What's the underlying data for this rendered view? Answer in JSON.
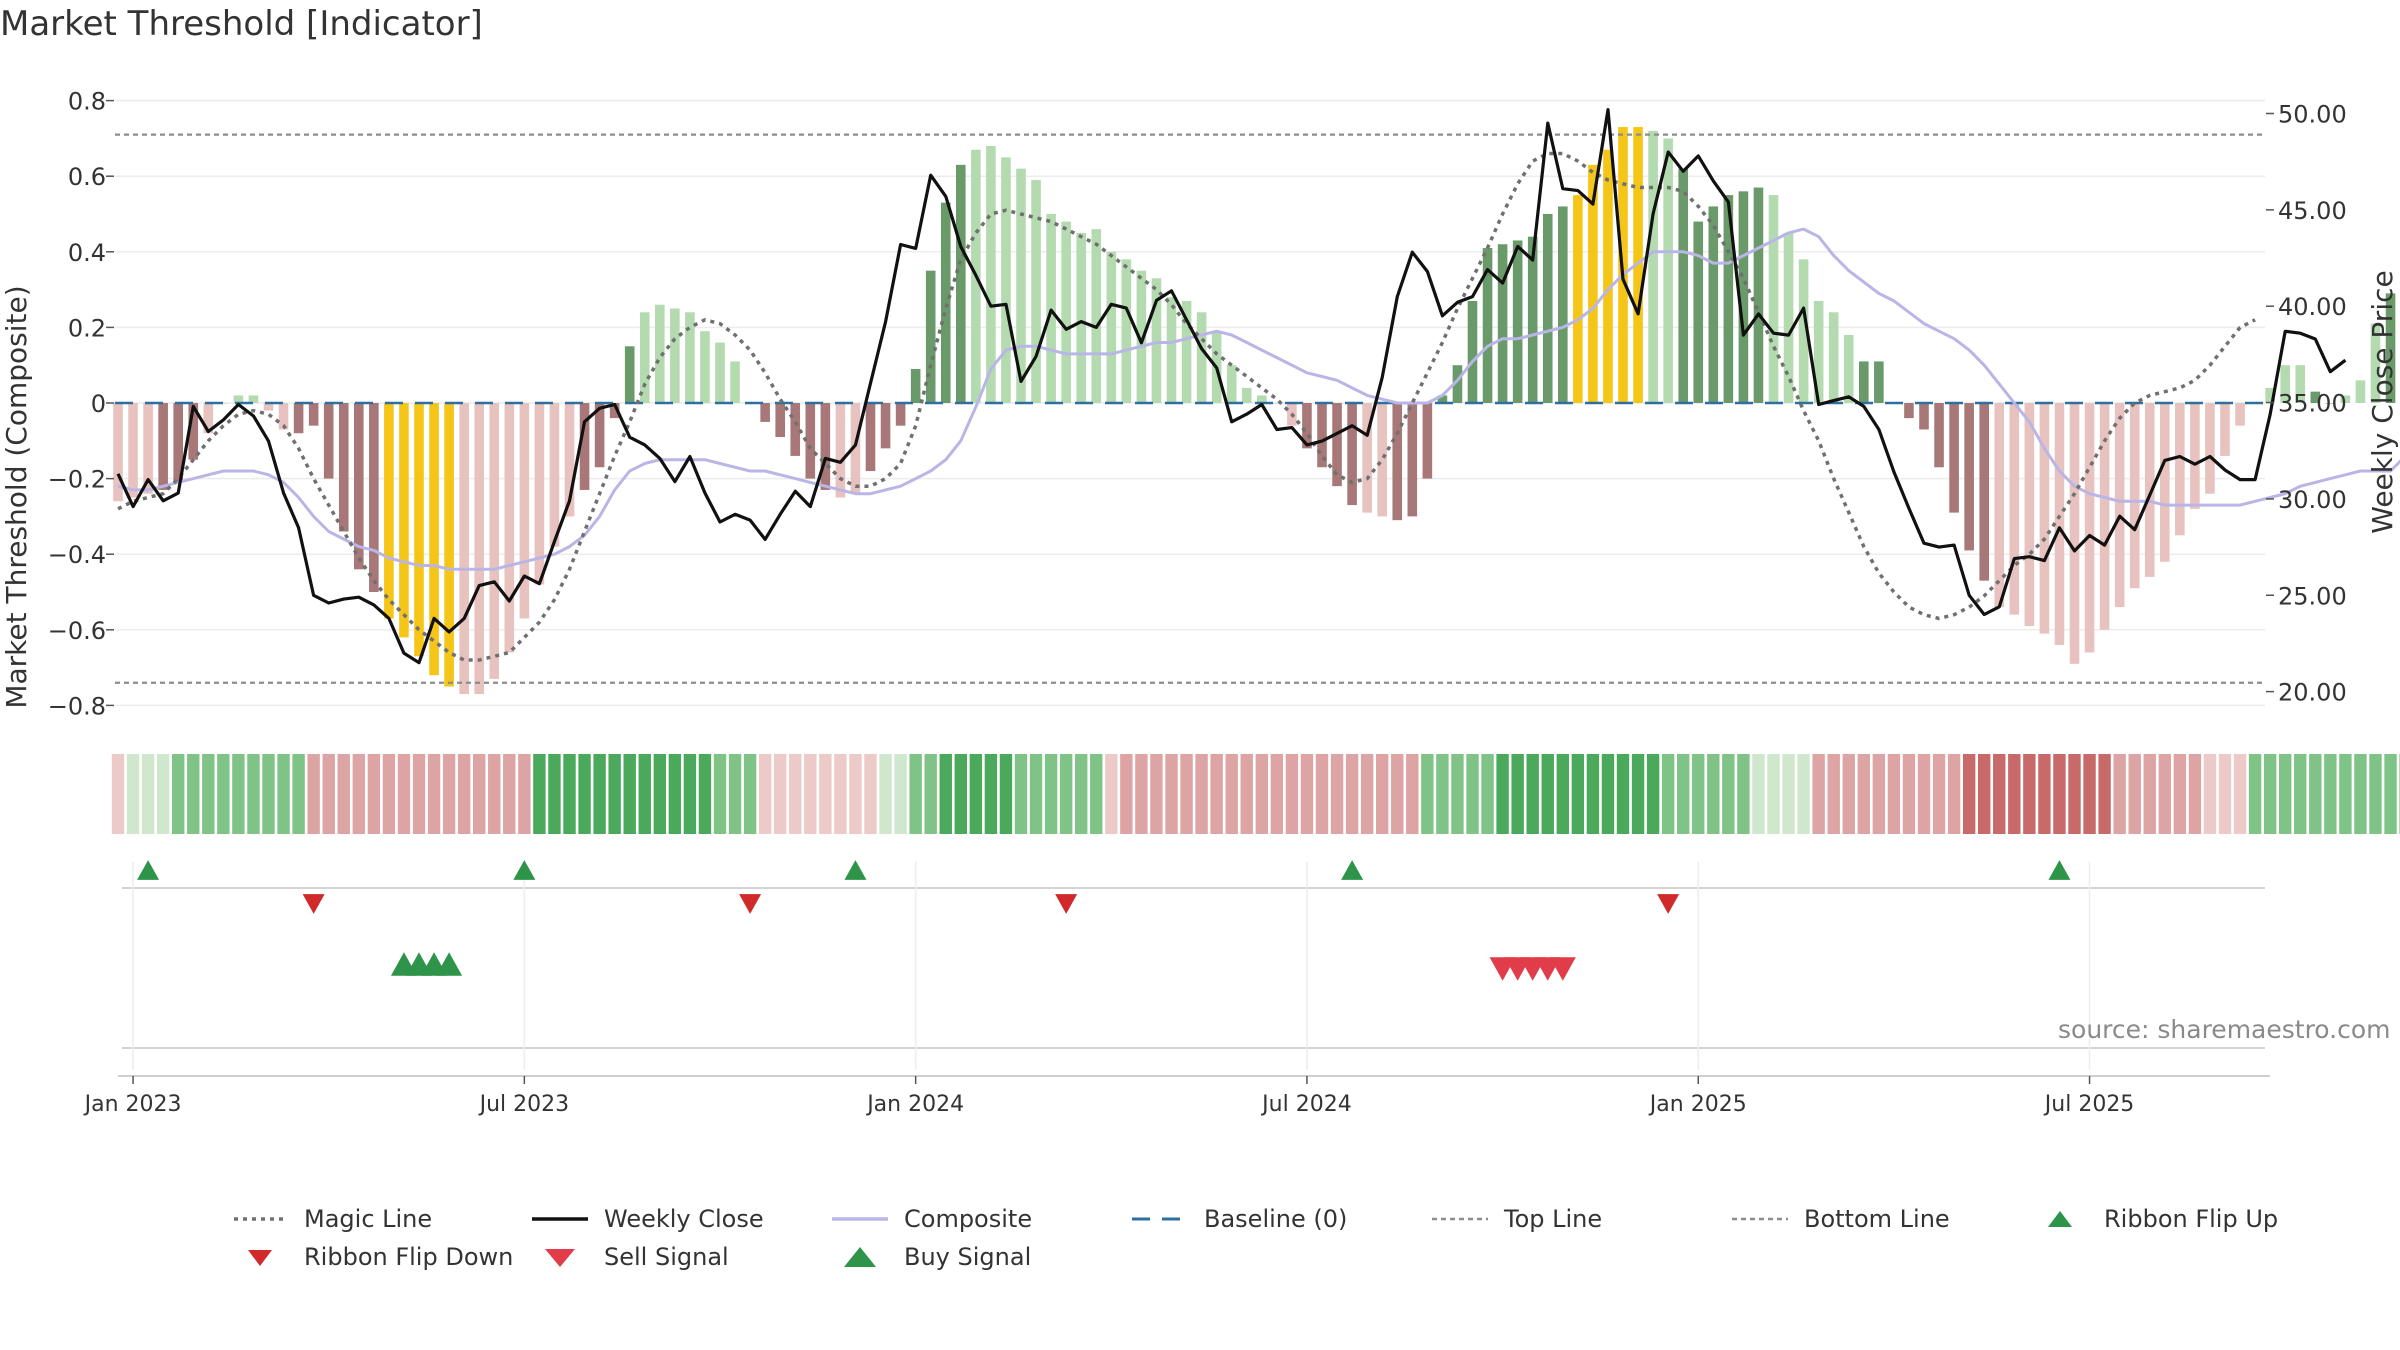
{
  "title": "Market Threshold [Indicator]",
  "source": "source: sharemaestro.com",
  "chart_data": {
    "type": "bar",
    "title": "Market Threshold [Indicator]",
    "ylabel_left": "Market Threshold (Composite)",
    "ylabel_right": "Weekly Close Price",
    "ylim_left": [
      -0.85,
      0.85
    ],
    "ylim_right": [
      19.5,
      51.5
    ],
    "yticks_left": [
      "0.8",
      "0.6",
      "0.4",
      "0.2",
      "0",
      "−0.2",
      "−0.4",
      "−0.6",
      "−0.8"
    ],
    "yticks_left_values": [
      0.8,
      0.6,
      0.4,
      0.2,
      0,
      -0.2,
      -0.4,
      -0.6,
      -0.8
    ],
    "yticks_right": [
      "50.00",
      "45.00",
      "40.00",
      "35.00",
      "30.00",
      "25.00",
      "20.00"
    ],
    "yticks_right_values": [
      50,
      45,
      40,
      35,
      30,
      25,
      20
    ],
    "xticks": [
      "Jan 2023",
      "Jul 2023",
      "Jan 2024",
      "Jul 2024",
      "Jan 2025",
      "Jul 2025"
    ],
    "xticks_week": [
      1,
      27,
      53,
      79,
      105,
      131
    ],
    "top_line": 0.71,
    "bottom_line": -0.74,
    "baseline": 0,
    "grid": true,
    "legend_position": "bottom",
    "colors": {
      "strong_pos": "#6a9a6a",
      "weak_pos": "#b4dbb0",
      "strong_neg": "#a87878",
      "weak_neg": "#e8c2bf",
      "extreme": "#f5c518",
      "weekly_close": "#111111",
      "composite": "#b9b5e6",
      "magic_line": "#707070",
      "baseline": "#2f6f9f",
      "threshold_lines": "#8c8c8c",
      "flip_up": "#2e9449",
      "flip_down": "#d12a2a",
      "sell_signal": "#e03c4a",
      "buy_signal": "#2e9449"
    },
    "bars": [
      -0.26,
      -0.25,
      -0.24,
      -0.23,
      -0.21,
      -0.15,
      -0.08,
      0.0,
      0.02,
      0.02,
      -0.02,
      -0.07,
      -0.08,
      -0.06,
      -0.2,
      -0.34,
      -0.44,
      -0.5,
      -0.57,
      -0.62,
      -0.67,
      -0.72,
      -0.75,
      -0.77,
      -0.77,
      -0.73,
      -0.66,
      -0.57,
      -0.48,
      -0.38,
      -0.3,
      -0.23,
      -0.17,
      -0.04,
      0.15,
      0.24,
      0.26,
      0.25,
      0.24,
      0.19,
      0.16,
      0.11,
      0.0,
      -0.05,
      -0.09,
      -0.14,
      -0.2,
      -0.23,
      -0.25,
      -0.24,
      -0.18,
      -0.12,
      -0.06,
      0.09,
      0.35,
      0.53,
      0.63,
      0.67,
      0.68,
      0.65,
      0.62,
      0.59,
      0.5,
      0.48,
      0.45,
      0.46,
      0.4,
      0.38,
      0.35,
      0.33,
      0.28,
      0.27,
      0.24,
      0.19,
      0.1,
      0.04,
      0.02,
      0.0,
      -0.06,
      -0.12,
      -0.17,
      -0.22,
      -0.27,
      -0.29,
      -0.3,
      -0.31,
      -0.3,
      -0.2,
      0.02,
      0.1,
      0.27,
      0.41,
      0.42,
      0.43,
      0.44,
      0.5,
      0.52,
      0.55,
      0.63,
      0.67,
      0.73,
      0.73,
      0.72,
      0.7,
      0.62,
      0.48,
      0.52,
      0.55,
      0.56,
      0.57,
      0.55,
      0.45,
      0.38,
      0.27,
      0.24,
      0.18,
      0.11,
      0.11,
      0.0,
      -0.04,
      -0.07,
      -0.17,
      -0.29,
      -0.39,
      -0.47,
      -0.54,
      -0.56,
      -0.59,
      -0.61,
      -0.64,
      -0.69,
      -0.66,
      -0.6,
      -0.54,
      -0.49,
      -0.46,
      -0.42,
      -0.35,
      -0.28,
      -0.24,
      -0.14,
      -0.06,
      0.0,
      0.04,
      0.1,
      0.1,
      0.03,
      0.0,
      0.02,
      0.06,
      0.21,
      0.29,
      0.35,
      0.33,
      0.37
    ],
    "bar_classes": "wwwsssww wwwwssssss eeeeewwwwwwwwssss wwwwwwwssssssw wsss ssssww wwwwwwwwwwwwwww wwwwwssssww ssssssssss sseeeeewwsssssswwwwww sssssssss wwwwwwwwww wwwwwwwwwww sswwwsww",
    "weekly_close": [
      31.3,
      29.6,
      31.0,
      29.9,
      30.3,
      34.8,
      33.5,
      34.1,
      34.9,
      34.3,
      33.0,
      30.3,
      28.5,
      25.0,
      24.6,
      24.8,
      24.9,
      24.5,
      23.8,
      22.0,
      21.5,
      23.8,
      23.1,
      23.8,
      25.5,
      25.7,
      24.7,
      26.0,
      25.6,
      27.8,
      29.9,
      34.0,
      34.7,
      34.9,
      33.2,
      32.8,
      32.1,
      30.9,
      32.2,
      30.3,
      28.8,
      29.2,
      28.9,
      27.9,
      29.2,
      30.4,
      29.6,
      32.1,
      31.9,
      32.8,
      36.0,
      39.2,
      43.2,
      43.0,
      46.8,
      45.7,
      43.1,
      41.6,
      40.0,
      40.1,
      36.1,
      37.4,
      39.8,
      38.8,
      39.2,
      38.9,
      40.1,
      39.9,
      38.1,
      40.3,
      40.8,
      39.3,
      37.8,
      36.8,
      34.0,
      34.4,
      34.9,
      33.6,
      33.7,
      32.8,
      33.0,
      33.4,
      33.8,
      33.3,
      36.3,
      40.5,
      42.8,
      41.8,
      39.5,
      40.2,
      40.5,
      41.9,
      41.2,
      43.1,
      42.4,
      49.5,
      46.1,
      46.0,
      45.3,
      50.2,
      41.4,
      39.6,
      44.8,
      48.0,
      47.0,
      47.8,
      46.5,
      45.4,
      38.5,
      39.6,
      38.6,
      38.5,
      39.9,
      34.9,
      35.1,
      35.3,
      34.8,
      33.6,
      31.4,
      29.5,
      27.7,
      27.5,
      27.6,
      25.0,
      24.0,
      24.4,
      26.9,
      27.0,
      26.8,
      28.5,
      27.3,
      28.1,
      27.6,
      29.1,
      28.4,
      30.2,
      32.0,
      32.2,
      31.8,
      32.2,
      31.5,
      31.0,
      31.0,
      34.4,
      38.7,
      38.6,
      38.3,
      36.6,
      37.2
    ],
    "composite": [
      -0.22,
      -0.23,
      -0.23,
      -0.22,
      -0.21,
      -0.2,
      -0.19,
      -0.18,
      -0.18,
      -0.18,
      -0.19,
      -0.21,
      -0.25,
      -0.3,
      -0.34,
      -0.36,
      -0.38,
      -0.39,
      -0.41,
      -0.42,
      -0.43,
      -0.43,
      -0.44,
      -0.44,
      -0.44,
      -0.44,
      -0.43,
      -0.42,
      -0.41,
      -0.4,
      -0.38,
      -0.35,
      -0.3,
      -0.23,
      -0.18,
      -0.16,
      -0.15,
      -0.15,
      -0.15,
      -0.15,
      -0.16,
      -0.17,
      -0.18,
      -0.18,
      -0.19,
      -0.2,
      -0.21,
      -0.22,
      -0.23,
      -0.24,
      -0.24,
      -0.23,
      -0.22,
      -0.2,
      -0.18,
      -0.15,
      -0.1,
      -0.01,
      0.09,
      0.14,
      0.15,
      0.15,
      0.14,
      0.13,
      0.13,
      0.13,
      0.13,
      0.14,
      0.15,
      0.16,
      0.16,
      0.17,
      0.18,
      0.19,
      0.18,
      0.16,
      0.14,
      0.12,
      0.1,
      0.08,
      0.07,
      0.06,
      0.04,
      0.02,
      0.01,
      0.0,
      0.0,
      0.0,
      0.02,
      0.06,
      0.11,
      0.15,
      0.17,
      0.17,
      0.18,
      0.19,
      0.2,
      0.22,
      0.25,
      0.3,
      0.34,
      0.37,
      0.4,
      0.4,
      0.4,
      0.39,
      0.37,
      0.37,
      0.39,
      0.41,
      0.43,
      0.45,
      0.46,
      0.44,
      0.39,
      0.35,
      0.32,
      0.29,
      0.27,
      0.24,
      0.21,
      0.19,
      0.17,
      0.14,
      0.1,
      0.05,
      0.0,
      -0.05,
      -0.12,
      -0.18,
      -0.22,
      -0.24,
      -0.25,
      -0.26,
      -0.26,
      -0.26,
      -0.27,
      -0.27,
      -0.27,
      -0.27,
      -0.27,
      -0.27,
      -0.26,
      -0.25,
      -0.24,
      -0.22,
      -0.21,
      -0.2,
      -0.19,
      -0.18,
      -0.18,
      -0.18,
      -0.14,
      -0.1,
      -0.06,
      -0.03,
      -0.02
    ],
    "magic_line": [
      -0.28,
      -0.26,
      -0.25,
      -0.24,
      -0.2,
      -0.15,
      -0.1,
      -0.06,
      -0.03,
      -0.02,
      -0.03,
      -0.06,
      -0.12,
      -0.2,
      -0.27,
      -0.34,
      -0.41,
      -0.47,
      -0.52,
      -0.56,
      -0.6,
      -0.63,
      -0.66,
      -0.68,
      -0.68,
      -0.67,
      -0.66,
      -0.62,
      -0.58,
      -0.52,
      -0.44,
      -0.34,
      -0.24,
      -0.14,
      -0.05,
      0.05,
      0.12,
      0.17,
      0.2,
      0.22,
      0.21,
      0.18,
      0.14,
      0.08,
      0.01,
      -0.05,
      -0.12,
      -0.16,
      -0.2,
      -0.22,
      -0.22,
      -0.2,
      -0.16,
      -0.06,
      0.1,
      0.25,
      0.38,
      0.45,
      0.5,
      0.51,
      0.5,
      0.49,
      0.48,
      0.46,
      0.44,
      0.42,
      0.39,
      0.36,
      0.33,
      0.3,
      0.26,
      0.21,
      0.17,
      0.13,
      0.1,
      0.07,
      0.04,
      0.01,
      -0.03,
      -0.08,
      -0.14,
      -0.19,
      -0.21,
      -0.2,
      -0.15,
      -0.08,
      0.0,
      0.08,
      0.16,
      0.25,
      0.33,
      0.41,
      0.5,
      0.58,
      0.64,
      0.66,
      0.66,
      0.64,
      0.61,
      0.59,
      0.58,
      0.57,
      0.57,
      0.57,
      0.56,
      0.52,
      0.47,
      0.4,
      0.33,
      0.24,
      0.15,
      0.07,
      -0.02,
      -0.1,
      -0.2,
      -0.29,
      -0.38,
      -0.45,
      -0.5,
      -0.54,
      -0.56,
      -0.57,
      -0.56,
      -0.54,
      -0.51,
      -0.47,
      -0.43,
      -0.4,
      -0.36,
      -0.3,
      -0.24,
      -0.17,
      -0.1,
      -0.04,
      0.0,
      0.02,
      0.03,
      0.04,
      0.06,
      0.1,
      0.15,
      0.2,
      0.22
    ],
    "ribbon": [
      -1,
      1,
      1,
      1,
      2,
      2,
      2,
      2,
      2,
      2,
      2,
      2,
      2,
      -2,
      -2,
      -2,
      -2,
      -2,
      -2,
      -2,
      -2,
      -2,
      -2,
      -2,
      -2,
      -2,
      -2,
      -2,
      3,
      3,
      3,
      3,
      3,
      3,
      3,
      3,
      3,
      3,
      3,
      3,
      2,
      2,
      2,
      -1,
      -1,
      -1,
      -1,
      -1,
      -1,
      -1,
      -1,
      1,
      1,
      2,
      2,
      3,
      3,
      3,
      3,
      3,
      2,
      2,
      2,
      2,
      2,
      2,
      -1,
      -2,
      -2,
      -2,
      -2,
      -2,
      -2,
      -2,
      -2,
      -2,
      -2,
      -2,
      -2,
      -2,
      -2,
      -2,
      -2,
      -2,
      -2,
      -2,
      -2,
      2,
      2,
      2,
      2,
      2,
      3,
      3,
      3,
      3,
      3,
      3,
      3,
      3,
      3,
      3,
      3,
      2,
      2,
      2,
      2,
      2,
      2,
      1,
      1,
      1,
      1,
      -2,
      -2,
      -2,
      -2,
      -2,
      -2,
      -2,
      -2,
      -2,
      -2,
      -3,
      -3,
      -3,
      -3,
      -3,
      -3,
      -3,
      -3,
      -3,
      -3,
      -2,
      -2,
      -2,
      -2,
      -2,
      -2,
      -1,
      -1,
      -1,
      2,
      2,
      2,
      2,
      2,
      2,
      2,
      2,
      2,
      2,
      2,
      2,
      2,
      2,
      2,
      2
    ],
    "ribbon_flip_up_weeks": [
      2,
      27,
      49,
      82,
      129
    ],
    "ribbon_flip_down_weeks": [
      13,
      42,
      63,
      103
    ],
    "sell_signal_weeks": [
      92,
      93,
      94,
      95,
      96
    ],
    "buy_signal_weeks": [
      19,
      20,
      21,
      22
    ],
    "legend": [
      "Magic Line",
      "Weekly Close",
      "Composite",
      "Baseline (0)",
      "Top Line",
      "Bottom Line",
      "Ribbon Flip Up",
      "Ribbon Flip Down",
      "Sell Signal",
      "Buy Signal"
    ]
  }
}
